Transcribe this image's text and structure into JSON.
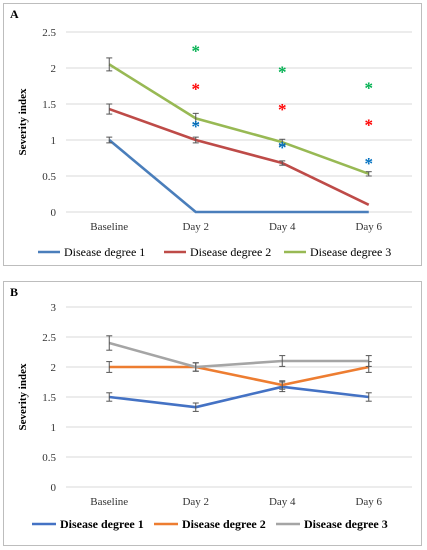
{
  "chart_data": [
    {
      "panel_label": "A",
      "type": "line",
      "ylabel": "Severity index",
      "categories": [
        "Baseline",
        "Day 2",
        "Day 4",
        "Day 6"
      ],
      "y_ticks": [
        "0",
        "0.5",
        "1",
        "1.5",
        "2",
        "2.5"
      ],
      "ylim": [
        0,
        2.5
      ],
      "grid": true,
      "legend_position": "bottom",
      "series": [
        {
          "name": "Disease degree 1",
          "color": "#4a7ebb",
          "values": [
            1.0,
            0.0,
            0.0,
            0.0
          ],
          "errors": [
            0.04,
            null,
            null,
            null
          ]
        },
        {
          "name": "Disease degree 2",
          "color": "#be4b48",
          "values": [
            1.43,
            1.0,
            0.68,
            0.1
          ],
          "errors": [
            0.07,
            0.04,
            0.03,
            null
          ]
        },
        {
          "name": "Disease degree 3",
          "color": "#98b954",
          "values": [
            2.05,
            1.3,
            0.97,
            0.53
          ],
          "errors": [
            0.09,
            0.07,
            0.04,
            0.03
          ]
        }
      ],
      "annotations": [
        {
          "text": "*",
          "color": "#00b050",
          "category": "Day 2",
          "y": 2.27
        },
        {
          "text": "*",
          "color": "#ff0000",
          "category": "Day 2",
          "y": 1.74
        },
        {
          "text": "*",
          "color": "#0070c0",
          "category": "Day 2",
          "y": 1.22
        },
        {
          "text": "*",
          "color": "#00b050",
          "category": "Day 4",
          "y": 1.98
        },
        {
          "text": "*",
          "color": "#ff0000",
          "category": "Day 4",
          "y": 1.46
        },
        {
          "text": "*",
          "color": "#0070c0",
          "category": "Day 4",
          "y": 0.93
        },
        {
          "text": "*",
          "color": "#00b050",
          "category": "Day 6",
          "y": 1.76
        },
        {
          "text": "*",
          "color": "#ff0000",
          "category": "Day 6",
          "y": 1.24
        },
        {
          "text": "*",
          "color": "#0070c0",
          "category": "Day 6",
          "y": 0.71
        }
      ]
    },
    {
      "panel_label": "B",
      "type": "line",
      "ylabel": "Severity index",
      "categories": [
        "Baseline",
        "Day 2",
        "Day 4",
        "Day 6"
      ],
      "y_ticks": [
        "0",
        "0.5",
        "1",
        "1.5",
        "2",
        "2.5",
        "3"
      ],
      "ylim": [
        0,
        3
      ],
      "grid": true,
      "legend_position": "bottom",
      "series": [
        {
          "name": "Disease degree 1",
          "color": "#4472c4",
          "values": [
            1.5,
            1.33,
            1.67,
            1.5
          ],
          "errors": [
            0.07,
            0.07,
            0.08,
            0.07
          ]
        },
        {
          "name": "Disease degree 2",
          "color": "#ed7d31",
          "values": [
            2.0,
            2.0,
            1.7,
            2.0
          ],
          "errors": [
            0.09,
            0.07,
            0.07,
            0.09
          ]
        },
        {
          "name": "Disease degree 3",
          "color": "#a5a5a5",
          "values": [
            2.4,
            2.0,
            2.1,
            2.1
          ],
          "errors": [
            0.12,
            0.07,
            0.09,
            0.09
          ]
        }
      ]
    }
  ]
}
